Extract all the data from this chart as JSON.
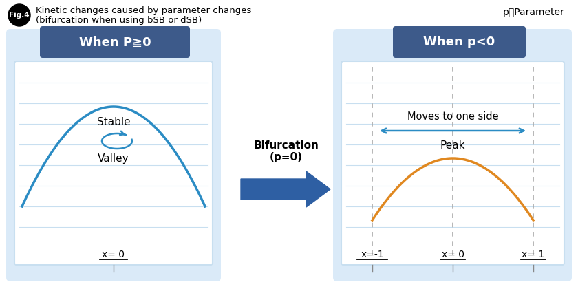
{
  "title": "Kinetic changes caused by parameter changes",
  "subtitle": "(bifurcation when using bSB or dSB)",
  "fig_label": "Fig.4",
  "p_label": "p：Parameter",
  "bg_color": "#ffffff",
  "panel_bg": "#daeaf8",
  "box_bg": "#ffffff",
  "header_bg": "#3d5a8a",
  "header_text_color": "#ffffff",
  "left_header": "When P≧0",
  "right_header": "When p<0",
  "curve_color_left": "#2b8cc4",
  "curve_color_right": "#e08820",
  "arrow_color": "#2e5fa3",
  "bifurcation_text": "Bifurcation\n(p=0)",
  "stable_label": "Stable",
  "valley_label": "Valley",
  "moves_label": "Moves to one side",
  "peak_label": "Peak",
  "x0_label": "x= 0",
  "xm1_label": "x=-1",
  "x1_label": "x= 1",
  "x0_label2": "x= 0",
  "grid_color": "#c8dff0",
  "dashed_color": "#aaaaaa"
}
